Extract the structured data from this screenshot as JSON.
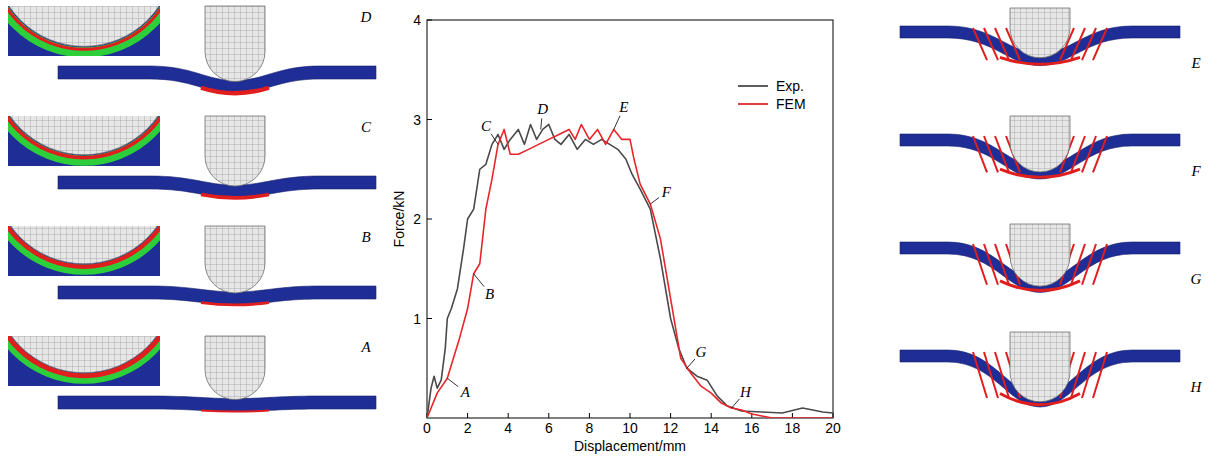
{
  "chart_data": {
    "type": "line",
    "xlabel": "Displacement/mm",
    "ylabel": "Force/kN",
    "xlim": [
      0,
      20
    ],
    "ylim": [
      0,
      4
    ],
    "xticks": [
      0,
      2,
      4,
      6,
      8,
      10,
      12,
      14,
      16,
      18,
      20
    ],
    "yticks": [
      1,
      2,
      3,
      4
    ],
    "grid": false,
    "legend": "upper right",
    "series": [
      {
        "name": "Exp.",
        "color": "#4a4a4a",
        "x": [
          0,
          0.2,
          0.35,
          0.5,
          0.7,
          0.9,
          1.0,
          1.2,
          1.5,
          1.8,
          2.0,
          2.3,
          2.6,
          2.9,
          3.2,
          3.5,
          3.8,
          4.1,
          4.5,
          4.8,
          5.1,
          5.4,
          5.7,
          6.0,
          6.3,
          6.6,
          7.0,
          7.4,
          7.8,
          8.2,
          8.6,
          9.0,
          9.4,
          9.8,
          10.1,
          10.5,
          11.0,
          11.5,
          12.0,
          12.4,
          12.8,
          13.3,
          13.8,
          14.3,
          14.8,
          15.5,
          16.5,
          17.5,
          18.5,
          19.5,
          20
        ],
        "values": [
          0,
          0.3,
          0.42,
          0.3,
          0.38,
          0.7,
          1.0,
          1.1,
          1.3,
          1.7,
          2.0,
          2.1,
          2.5,
          2.55,
          2.75,
          2.85,
          2.7,
          2.8,
          2.9,
          2.75,
          2.95,
          2.8,
          2.9,
          2.95,
          2.8,
          2.75,
          2.85,
          2.7,
          2.8,
          2.75,
          2.8,
          2.75,
          2.7,
          2.6,
          2.45,
          2.3,
          2.1,
          1.6,
          1.0,
          0.7,
          0.5,
          0.42,
          0.38,
          0.22,
          0.12,
          0.07,
          0.06,
          0.05,
          0.1,
          0.06,
          0.05
        ]
      },
      {
        "name": "FEM",
        "color": "#e8262a",
        "x": [
          0,
          0.5,
          1.0,
          1.3,
          1.6,
          2.0,
          2.3,
          2.6,
          2.9,
          3.2,
          3.5,
          3.8,
          4.1,
          4.5,
          5.0,
          5.5,
          6.0,
          6.5,
          7.0,
          7.3,
          7.6,
          8.0,
          8.4,
          8.8,
          9.2,
          9.6,
          10.0,
          10.2,
          10.5,
          11.0,
          11.5,
          12.0,
          12.5,
          13.0,
          13.5,
          14.0,
          14.5,
          15.0,
          15.5,
          16.0,
          16.5,
          17.0,
          20
        ],
        "values": [
          0,
          0.25,
          0.4,
          0.6,
          0.8,
          1.1,
          1.45,
          1.55,
          2.1,
          2.4,
          2.75,
          2.9,
          2.65,
          2.65,
          2.7,
          2.75,
          2.8,
          2.85,
          2.9,
          2.8,
          2.95,
          2.8,
          2.9,
          2.75,
          2.9,
          2.8,
          2.8,
          2.6,
          2.35,
          2.15,
          1.8,
          1.2,
          0.6,
          0.45,
          0.32,
          0.25,
          0.15,
          0.1,
          0.08,
          0.04,
          0.02,
          0,
          0
        ]
      }
    ],
    "annotations": [
      {
        "text": "A",
        "x": 1.0,
        "y": 0.4
      },
      {
        "text": "B",
        "x": 2.3,
        "y": 1.45
      },
      {
        "text": "C",
        "x": 3.5,
        "y": 2.75
      },
      {
        "text": "D",
        "x": 5.6,
        "y": 2.9
      },
      {
        "text": "E",
        "x": 9.2,
        "y": 2.9
      },
      {
        "text": "F",
        "x": 11.0,
        "y": 2.15
      },
      {
        "text": "G",
        "x": 12.8,
        "y": 0.5
      },
      {
        "text": "H",
        "x": 15.0,
        "y": 0.1
      }
    ]
  }
}
